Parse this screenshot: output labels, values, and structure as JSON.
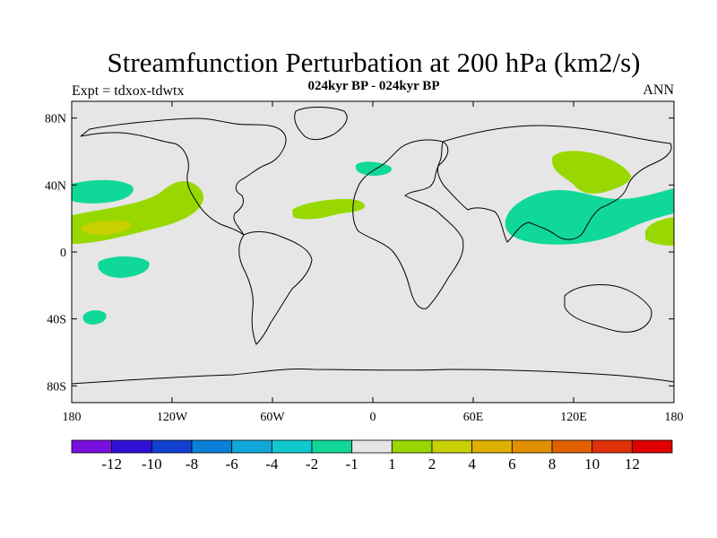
{
  "title": "Streamfunction Perturbation at 200 hPa (km2/s)",
  "subtitle": "024kyr BP - 024kyr BP",
  "left_label": "Expt = tdxox-tdwtx",
  "right_label": "ANN",
  "ocean_color": "#e6e6e6",
  "coastline_color": "#000000",
  "lat_ticks": [
    "80N",
    "40N",
    "0",
    "40S",
    "80S"
  ],
  "lat_tick_values": [
    80,
    40,
    0,
    -40,
    -80
  ],
  "lon_ticks": [
    "180",
    "120W",
    "60W",
    "0",
    "60E",
    "120E",
    "180"
  ],
  "lon_tick_values": [
    -180,
    -120,
    -60,
    0,
    60,
    120,
    180
  ],
  "chart_data": {
    "type": "heatmap",
    "projection": "cylindrical equidistant",
    "field": "streamfunction perturbation",
    "units": "km2/s",
    "lon_range": [
      -180,
      180
    ],
    "lat_range": [
      -90,
      90
    ],
    "levels": [
      -12,
      -10,
      -8,
      -6,
      -4,
      -2,
      -1,
      1,
      2,
      4,
      6,
      8,
      10,
      12
    ],
    "colors": [
      "#7a10e0",
      "#3010d8",
      "#1040d0",
      "#0a80d8",
      "#10a8d8",
      "#10c8d0",
      "#10d898",
      "#e6e6e6",
      "#98d800",
      "#c8d000",
      "#e0b000",
      "#e09000",
      "#e06000",
      "#e03008",
      "#e00000"
    ],
    "colorbar_labels": [
      "-12",
      "-10",
      "-8",
      "-6",
      "-4",
      "-2",
      "-1",
      "1",
      "2",
      "4",
      "6",
      "8",
      "10",
      "12"
    ],
    "regions": [
      {
        "name": "north-pacific-east-negative",
        "level": "-2 to -1",
        "lon_range": [
          -180,
          -150
        ],
        "lat_range": [
          28,
          43
        ],
        "color": "#10d898"
      },
      {
        "name": "tropical-east-pacific-positive",
        "level": "1 to 2",
        "lon_range": [
          -180,
          -105
        ],
        "lat_range": [
          4,
          43
        ],
        "color": "#98d800"
      },
      {
        "name": "tropical-east-pacific-core",
        "level": "2 to 4",
        "lon_range": [
          -175,
          -150
        ],
        "lat_range": [
          12,
          20
        ],
        "color": "#c8d000"
      },
      {
        "name": "south-pacific-negative",
        "level": "-2 to -1",
        "lon_range": [
          -168,
          -137
        ],
        "lat_range": [
          -15,
          -3
        ],
        "color": "#10d898"
      },
      {
        "name": "south-pacific-small-negative",
        "level": "-2 to -1",
        "lon_range": [
          -168,
          -155
        ],
        "lat_range": [
          -43,
          -35
        ],
        "color": "#10d898"
      },
      {
        "name": "atlantic-subtropical-positive",
        "level": "1 to 2",
        "lon_range": [
          -50,
          -5
        ],
        "lat_range": [
          19,
          31
        ],
        "color": "#98d800"
      },
      {
        "name": "europe-negative",
        "level": "-2 to -1",
        "lon_range": [
          -10,
          12
        ],
        "lat_range": [
          46,
          55
        ],
        "color": "#10d898"
      },
      {
        "name": "east-asia-negative",
        "level": "-2 to -1",
        "lon_range": [
          83,
          180
        ],
        "lat_range": [
          4,
          38
        ],
        "color": "#10d898"
      },
      {
        "name": "siberia-positive",
        "level": "1 to 2",
        "lon_range": [
          107,
          160
        ],
        "lat_range": [
          38,
          61
        ],
        "color": "#98d800"
      },
      {
        "name": "west-pacific-positive",
        "level": "1 to 2",
        "lon_range": [
          165,
          180
        ],
        "lat_range": [
          4,
          20
        ],
        "color": "#98d800"
      }
    ]
  }
}
